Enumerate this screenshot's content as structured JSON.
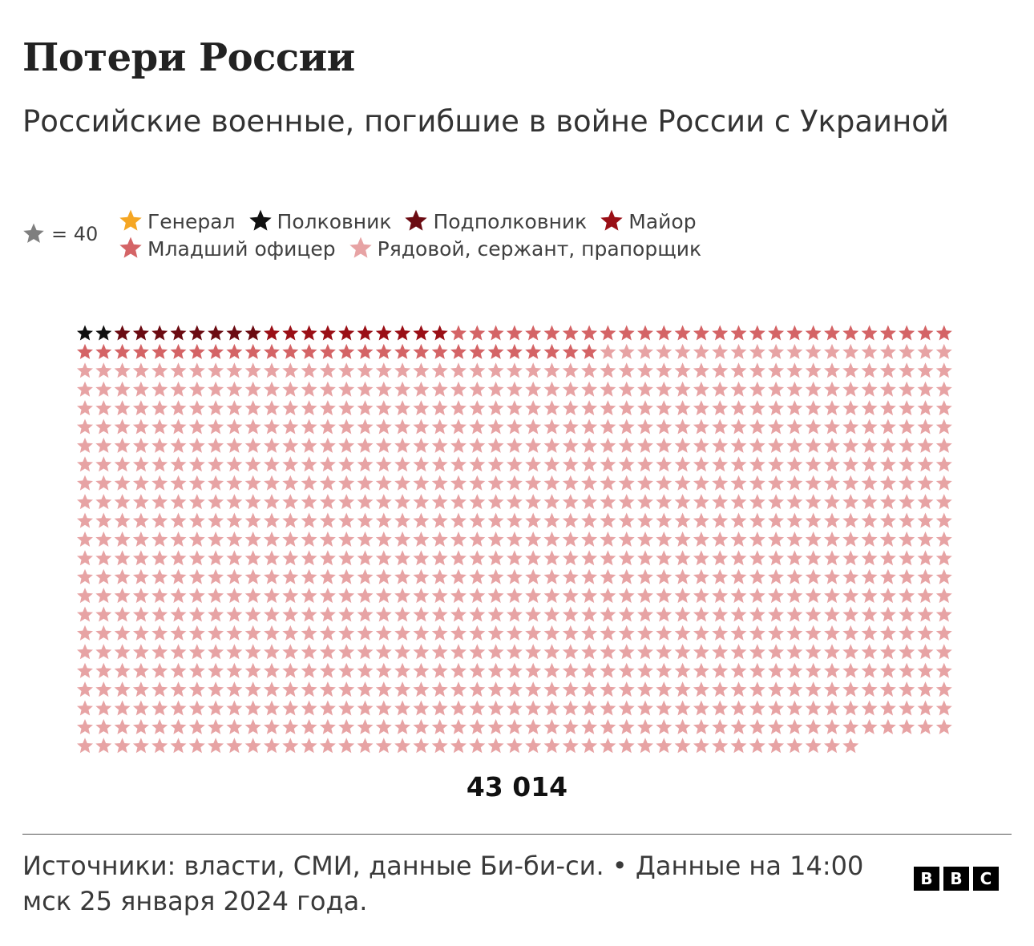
{
  "title": "Потери России",
  "subtitle": "Российские военные, погибшие в войне России с Украиной",
  "legend": {
    "scale_label": "= 40",
    "scale_color": "#7f7f7f",
    "items": [
      {
        "label": "Генерал",
        "color": "#f5a623"
      },
      {
        "label": "Полковник",
        "color": "#111111"
      },
      {
        "label": "Подполковник",
        "color": "#6b0b12"
      },
      {
        "label": "Майор",
        "color": "#9a0f16"
      },
      {
        "label": "Младший офицер",
        "color": "#d46466"
      },
      {
        "label": "Рядовой, сержант, прапорщик",
        "color": "#e7a3a4"
      }
    ]
  },
  "chart_data": {
    "type": "pictogram",
    "unit_value": 40,
    "columns": 47,
    "total_label": "43 014",
    "series": [
      {
        "name": "Генерал",
        "icons": 0,
        "color": "#f5a623"
      },
      {
        "name": "Полковник",
        "icons": 2,
        "color": "#111111"
      },
      {
        "name": "Подполковник",
        "icons": 8,
        "color": "#6b0b12"
      },
      {
        "name": "Майор",
        "icons": 10,
        "color": "#9a0f16"
      },
      {
        "name": "Младший офицер",
        "icons": 55,
        "color": "#d46466"
      },
      {
        "name": "Рядовой, сержант, прапорщик",
        "icons": 1001,
        "color": "#e7a3a4"
      }
    ]
  },
  "footer": {
    "source": "Источники: власти, СМИ, данные Би-би-си. • Данные на 14:00 мск 25 января 2024 года.",
    "logo_letters": [
      "B",
      "B",
      "C"
    ]
  }
}
